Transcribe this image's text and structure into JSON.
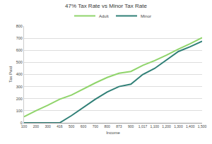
{
  "chart_data": {
    "type": "line",
    "title": "47% Tax Rate vs Minor Tax Rate",
    "x_label": "Income",
    "y_label": "Tax Paid",
    "categories": [
      "100",
      "200",
      "300",
      "416",
      "500",
      "600",
      "700",
      "800",
      "873",
      "900",
      "1,017",
      "1,100",
      "1,200",
      "1,300",
      "1,400",
      "1,500"
    ],
    "series": [
      {
        "name": "Adult",
        "color": "#8fd46a",
        "values": [
          50,
          100,
          145,
          195,
          230,
          280,
          330,
          375,
          410,
          425,
          475,
          515,
          560,
          610,
          655,
          705
        ]
      },
      {
        "name": "Minor",
        "color": "#2f7f76",
        "values": [
          0,
          0,
          0,
          0,
          60,
          130,
          195,
          255,
          300,
          320,
          400,
          450,
          520,
          590,
          630,
          675
        ]
      }
    ],
    "ylim": [
      0,
      800
    ],
    "yticks": [
      0,
      100,
      200,
      300,
      400,
      500,
      600,
      700,
      800
    ],
    "grid": true,
    "legend": "top"
  }
}
